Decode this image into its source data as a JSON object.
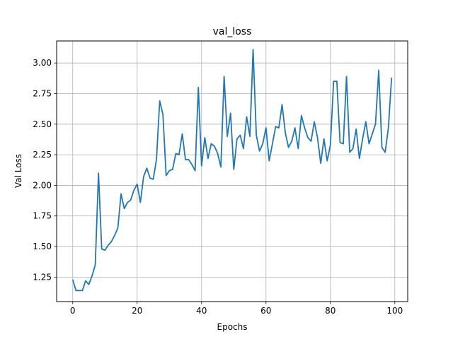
{
  "chart_data": {
    "type": "line",
    "title": "val_loss",
    "xlabel": "Epochs",
    "ylabel": "Val Loss",
    "xlim": [
      -5,
      104
    ],
    "ylim": [
      1.05,
      3.18
    ],
    "xticks": [
      0,
      20,
      40,
      60,
      80,
      100
    ],
    "yticks": [
      1.25,
      1.5,
      1.75,
      2.0,
      2.25,
      2.5,
      2.75,
      3.0
    ],
    "xtick_labels": [
      "0",
      "20",
      "40",
      "60",
      "80",
      "100"
    ],
    "ytick_labels": [
      "1.25",
      "1.50",
      "1.75",
      "2.00",
      "2.25",
      "2.50",
      "2.75",
      "3.00"
    ],
    "grid": true,
    "series": [
      {
        "color": "#1f77b4",
        "x": [
          0,
          1,
          2,
          3,
          4,
          5,
          6,
          7,
          8,
          9,
          10,
          11,
          12,
          13,
          14,
          15,
          16,
          17,
          18,
          19,
          20,
          21,
          22,
          23,
          24,
          25,
          26,
          27,
          28,
          29,
          30,
          31,
          32,
          33,
          34,
          35,
          36,
          37,
          38,
          39,
          40,
          41,
          42,
          43,
          44,
          45,
          46,
          47,
          48,
          49,
          50,
          51,
          52,
          53,
          54,
          55,
          56,
          57,
          58,
          59,
          60,
          61,
          62,
          63,
          64,
          65,
          66,
          67,
          68,
          69,
          70,
          71,
          72,
          73,
          74,
          75,
          76,
          77,
          78,
          79,
          80,
          81,
          82,
          83,
          84,
          85,
          86,
          87,
          88,
          89,
          90,
          91,
          92,
          93,
          94,
          95,
          96,
          97,
          98,
          99
        ],
        "y": [
          1.23,
          1.14,
          1.14,
          1.14,
          1.22,
          1.19,
          1.26,
          1.35,
          2.1,
          1.48,
          1.47,
          1.51,
          1.54,
          1.59,
          1.65,
          1.93,
          1.81,
          1.86,
          1.88,
          1.96,
          2.01,
          1.86,
          2.07,
          2.14,
          2.06,
          2.05,
          2.21,
          2.69,
          2.58,
          2.08,
          2.12,
          2.13,
          2.26,
          2.25,
          2.42,
          2.21,
          2.21,
          2.17,
          2.12,
          2.8,
          2.16,
          2.39,
          2.22,
          2.34,
          2.32,
          2.26,
          2.15,
          2.89,
          2.4,
          2.59,
          2.13,
          2.38,
          2.41,
          2.3,
          2.56,
          2.4,
          3.11,
          2.41,
          2.28,
          2.34,
          2.47,
          2.2,
          2.34,
          2.48,
          2.47,
          2.66,
          2.43,
          2.31,
          2.36,
          2.47,
          2.3,
          2.57,
          2.47,
          2.39,
          2.36,
          2.52,
          2.39,
          2.18,
          2.38,
          2.2,
          2.33,
          2.85,
          2.85,
          2.35,
          2.34,
          2.89,
          2.27,
          2.3,
          2.46,
          2.22,
          2.38,
          2.52,
          2.34,
          2.42,
          2.5,
          2.94,
          2.31,
          2.27,
          2.47,
          2.88
        ]
      }
    ]
  }
}
